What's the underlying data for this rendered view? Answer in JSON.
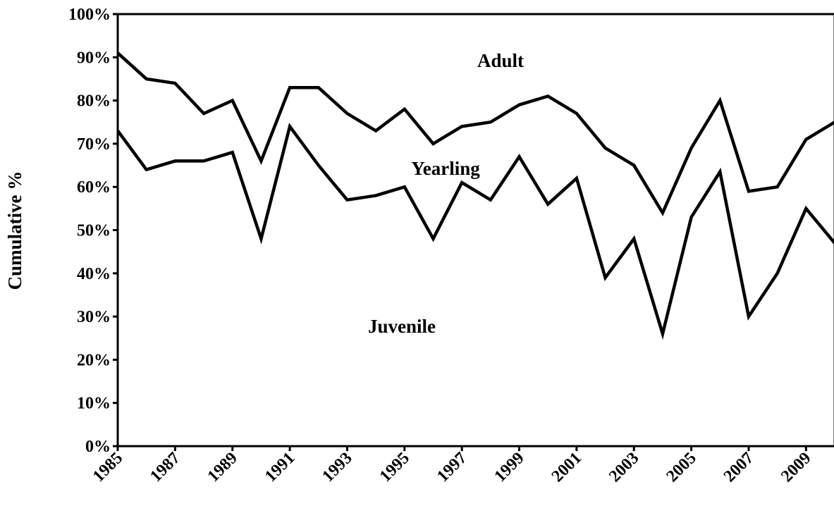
{
  "chart_data": {
    "type": "stacked-line",
    "y_label": "Cumulative %",
    "x": [
      1985,
      1986,
      1987,
      1988,
      1989,
      1990,
      1991,
      1992,
      1993,
      1994,
      1995,
      1996,
      1997,
      1998,
      1999,
      2000,
      2001,
      2002,
      2003,
      2004,
      2005,
      2006,
      2007,
      2008,
      2009,
      2010
    ],
    "series": [
      {
        "name": "Juvenile",
        "color": "#000000",
        "values": [
          73,
          64,
          66,
          66,
          68,
          48,
          74,
          65,
          57,
          58,
          60,
          48,
          61,
          57,
          67,
          56,
          62,
          39,
          48,
          26,
          53,
          63.5,
          30,
          40,
          55,
          47
        ]
      },
      {
        "name": "Yearling",
        "color": "#000000",
        "values": [
          18,
          21,
          18,
          11,
          12,
          18,
          9,
          18,
          20,
          15,
          18,
          22,
          13,
          18,
          12,
          25,
          15,
          30,
          17,
          28,
          16,
          16.5,
          29,
          20,
          16,
          28
        ]
      }
    ],
    "annotations": [
      "Adult"
    ],
    "xlim": [
      1985,
      2010
    ],
    "xticks": [
      1985,
      1987,
      1989,
      1991,
      1993,
      1995,
      1997,
      1999,
      2001,
      2003,
      2005,
      2007,
      2009
    ],
    "ylim": [
      0,
      100
    ],
    "yticks": [
      {
        "value": 0,
        "label": "0%"
      },
      {
        "value": 10,
        "label": "10%"
      },
      {
        "value": 20,
        "label": "20%"
      },
      {
        "value": 30,
        "label": "30%"
      },
      {
        "value": 40,
        "label": "40%"
      },
      {
        "value": 50,
        "label": "50%"
      },
      {
        "value": 60,
        "label": "60%"
      },
      {
        "value": 70,
        "label": "70%"
      },
      {
        "value": 80,
        "label": "80%"
      },
      {
        "value": 90,
        "label": "90%"
      },
      {
        "value": 100,
        "label": "100%"
      }
    ]
  }
}
